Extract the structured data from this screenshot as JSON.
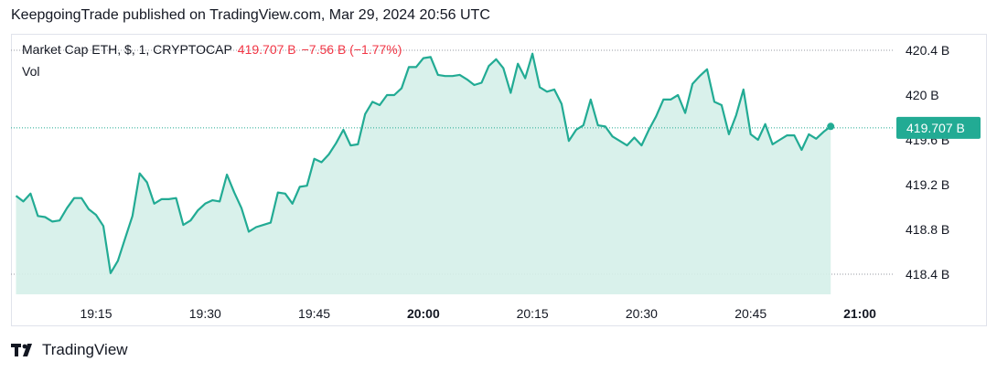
{
  "header": {
    "published": "KeepgoingTrade published on TradingView.com, Mar 29, 2024 20:56 UTC"
  },
  "legend": {
    "symbol": "Market Cap ETH, $, 1, CRYPTOCAP",
    "last": "419.707 B",
    "change": "−7.56 B (−1.77%)",
    "volume_label": "Vol"
  },
  "brand": {
    "name": "TradingView"
  },
  "colors": {
    "line": "#22ab94",
    "area": "#d5efe9",
    "change_negative": "#f23645",
    "price_badge": "#22ab94"
  },
  "chart_data": {
    "type": "area",
    "unit": "B",
    "y_ticks": [
      {
        "value": 420.4,
        "label": "420.4 B"
      },
      {
        "value": 420.0,
        "label": "420 B"
      },
      {
        "value": 419.6,
        "label": "419.6 B"
      },
      {
        "value": 419.2,
        "label": "419.2 B"
      },
      {
        "value": 418.8,
        "label": "418.8 B"
      },
      {
        "value": 418.4,
        "label": "418.4 B"
      }
    ],
    "x_ticks": [
      {
        "minute": 1155,
        "label": "19:15",
        "bold": false
      },
      {
        "minute": 1170,
        "label": "19:30",
        "bold": false
      },
      {
        "minute": 1185,
        "label": "19:45",
        "bold": false
      },
      {
        "minute": 1200,
        "label": "20:00",
        "bold": true
      },
      {
        "minute": 1215,
        "label": "20:15",
        "bold": false
      },
      {
        "minute": 1230,
        "label": "20:30",
        "bold": false
      },
      {
        "minute": 1245,
        "label": "20:45",
        "bold": false
      },
      {
        "minute": 1260,
        "label": "21:00",
        "bold": true
      }
    ],
    "last_price": 419.707,
    "last_price_label": "419.707 B",
    "start_minute": 1144,
    "values": [
      419.1,
      419.05,
      419.12,
      418.92,
      418.91,
      418.87,
      418.88,
      418.99,
      419.08,
      419.08,
      418.98,
      418.93,
      418.83,
      418.41,
      418.52,
      418.72,
      418.92,
      419.3,
      419.22,
      419.03,
      419.07,
      419.07,
      419.08,
      418.84,
      418.88,
      418.97,
      419.03,
      419.06,
      419.05,
      419.29,
      419.13,
      418.99,
      418.78,
      418.82,
      418.84,
      418.86,
      419.13,
      419.12,
      419.03,
      419.18,
      419.19,
      419.43,
      419.4,
      419.47,
      419.57,
      419.69,
      419.55,
      419.56,
      419.83,
      419.94,
      419.91,
      420.0,
      420.0,
      420.06,
      420.25,
      420.25,
      420.33,
      420.34,
      420.18,
      420.17,
      420.17,
      420.18,
      420.14,
      420.09,
      420.11,
      420.26,
      420.32,
      420.24,
      420.02,
      420.28,
      420.15,
      420.37,
      420.07,
      420.03,
      420.05,
      419.92,
      419.59,
      419.69,
      419.73,
      419.96,
      419.73,
      419.72,
      419.63,
      419.59,
      419.55,
      419.62,
      419.55,
      419.69,
      419.81,
      419.96,
      419.96,
      420.0,
      419.84,
      420.1,
      420.17,
      420.23,
      419.94,
      419.91,
      419.65,
      419.82,
      420.05,
      419.65,
      419.6,
      419.74,
      419.56,
      419.6,
      419.64,
      419.64,
      419.51,
      419.65,
      419.61,
      419.67,
      419.72
    ]
  }
}
